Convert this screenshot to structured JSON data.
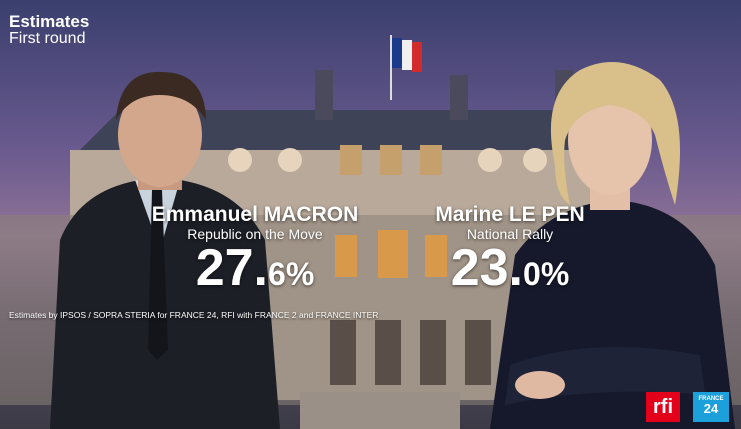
{
  "header": {
    "title": "Estimates",
    "subtitle": "First round"
  },
  "candidates": [
    {
      "name": "Emmanuel MACRON",
      "party": "Republic on the Move",
      "pct_whole": "27.",
      "pct_frac": "6%"
    },
    {
      "name": "Marine LE PEN",
      "party": "National Rally",
      "pct_whole": "23.",
      "pct_frac": "0%"
    }
  ],
  "source_note": "Estimates by IPSOS / SOPRA STERIA for FRANCE 24, RFI with FRANCE 2 and FRANCE INTER",
  "logos": {
    "rfi": "rfi",
    "france24_top": "FRANCE",
    "france24_bottom": "24"
  },
  "colors": {
    "rfi_red": "#e2001a",
    "france24_blue": "#1ba0dc",
    "sky_purple": "#6a5a8e"
  },
  "icons": [
    "french-flag-icon",
    "rfi-logo-icon",
    "france24-logo-icon"
  ]
}
